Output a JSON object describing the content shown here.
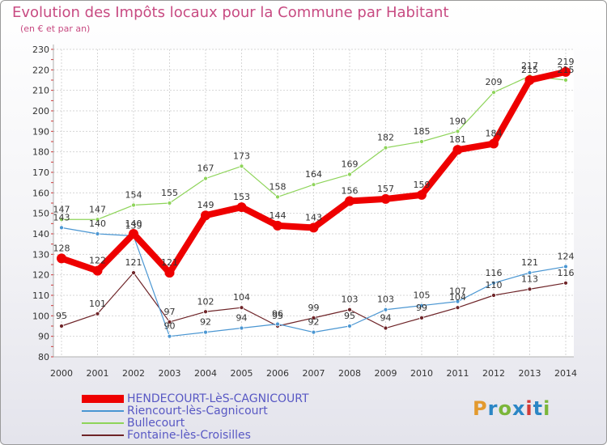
{
  "title": "Evolution des Impôts locaux pour la Commune par Habitant",
  "subtitle": "(en € et par an)",
  "logo": {
    "text": "Proxiti",
    "colors": [
      "#e39a2f",
      "#2b86c5",
      "#7bb63a",
      "#2b86c5",
      "#d23b38",
      "#2b86c5",
      "#7bb63a"
    ]
  },
  "chart_data": {
    "type": "line",
    "x": [
      2000,
      2001,
      2002,
      2003,
      2004,
      2005,
      2006,
      2007,
      2008,
      2009,
      2010,
      2011,
      2012,
      2013,
      2014
    ],
    "ylim": [
      80,
      230
    ],
    "yticks": [
      80,
      90,
      100,
      110,
      120,
      130,
      140,
      150,
      160,
      170,
      180,
      190,
      200,
      210,
      220,
      230
    ],
    "grid": true,
    "legend_position": "bottom-left",
    "series": [
      {
        "name": "Fontaine-lès-Croisilles",
        "color": "#6e2428",
        "width": 1.2,
        "marker": 5,
        "values": [
          95,
          101,
          121,
          97,
          102,
          104,
          95,
          99,
          103,
          94,
          99,
          104,
          110,
          113,
          116
        ],
        "labels": [
          "95",
          "101",
          "121",
          "97",
          "102",
          "104",
          "95",
          "99",
          "103",
          "94",
          "99",
          "104",
          "110",
          "113",
          "116"
        ]
      },
      {
        "name": "Riencourt-lès-Cagnicourt",
        "color": "#4a96d2",
        "width": 1.2,
        "marker": 5,
        "values": [
          143,
          140,
          139,
          90,
          92,
          94,
          96,
          92,
          95,
          103,
          105,
          107,
          116,
          121,
          124
        ],
        "labels": [
          "143",
          "140",
          "139",
          "90",
          "92",
          "94",
          "96",
          "92",
          "95",
          "103",
          "105",
          "107",
          "116",
          "121",
          "124"
        ]
      },
      {
        "name": "Bullecourt",
        "color": "#8ed45a",
        "width": 1.2,
        "marker": 5,
        "values": [
          147,
          147,
          154,
          155,
          167,
          173,
          158,
          164,
          169,
          182,
          185,
          190,
          209,
          217,
          215
        ],
        "labels": [
          "147",
          "147",
          "154",
          "155",
          "167",
          "173",
          "158",
          "164",
          "169",
          "182",
          "185",
          "190",
          "209",
          "217",
          "215"
        ]
      },
      {
        "name": "HENDECOURT-LèS-CAGNICOURT",
        "color": "#ee0000",
        "width": 8,
        "marker": 12,
        "values": [
          128,
          122,
          140,
          121,
          149,
          153,
          144,
          143,
          156,
          157,
          159,
          181,
          184,
          215,
          219
        ],
        "labels": [
          "128",
          "122",
          "140",
          "121",
          "149",
          "153",
          "144",
          "143",
          "156",
          "157",
          "159",
          "181",
          "184",
          "215",
          "219"
        ]
      }
    ]
  },
  "legend": [
    {
      "label": "HENDECOURT-LèS-CAGNICOURT",
      "color": "#ee0000",
      "thick": true
    },
    {
      "label": "Riencourt-lès-Cagnicourt",
      "color": "#4a96d2",
      "thick": false
    },
    {
      "label": "Bullecourt",
      "color": "#8ed45a",
      "thick": false
    },
    {
      "label": "Fontaine-lès-Croisilles",
      "color": "#6e2428",
      "thick": false
    }
  ]
}
